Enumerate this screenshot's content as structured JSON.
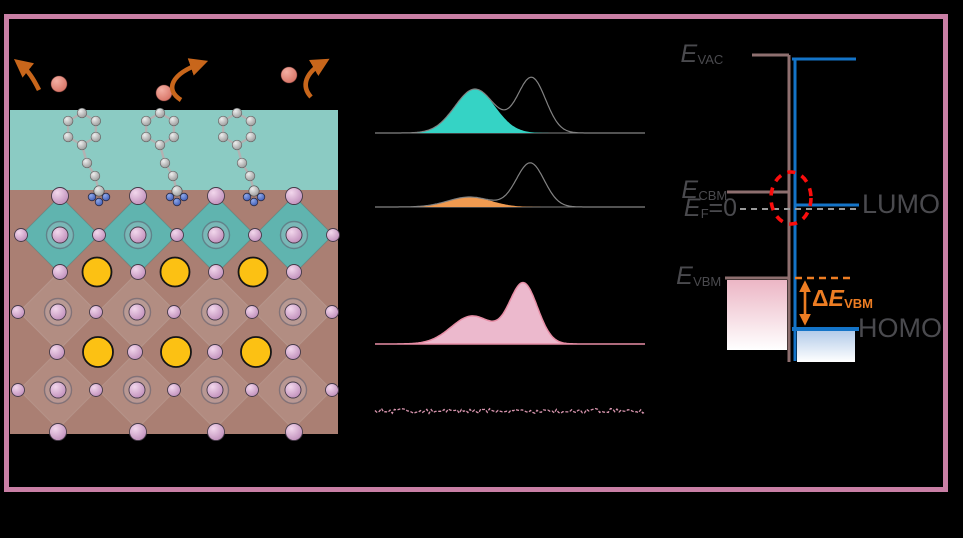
{
  "figure": {
    "type": "scientific-figure",
    "background": "#000000",
    "border_color": "#c97fa5"
  },
  "palette": {
    "teal_layer": "#8bcbc3",
    "perovskite_brown": "#aa7f73",
    "octahedra_teal": "#60b4af",
    "iodide_pink_sphere": "#cf9fc6",
    "cation_yellow": "#fcc113",
    "escaping_ion_salmon": "#e2897e",
    "arrow_orange": "#c8661b",
    "nitrogen_blue": "#4f6fce",
    "carbon_gray": "#b9b9b9",
    "spectrum_teal_fill": "#35d3c5",
    "spectrum_orange_fill": "#f09a50",
    "spectrum_pink_fill": "#ecb9cd",
    "spectrum_pink_line": "#e78ea6",
    "noise_trace_pink": "#d795ae",
    "fit_curve_gray": "#828282",
    "level_mauve": "#8e6f6f",
    "level_blue": "#1474c8",
    "label_gray": "#4a4a4e",
    "accent_orange": "#ed7d23",
    "highlight_red": "#fb0d0d",
    "fermi_dash_gray": "#9a9a9a",
    "vbm_box_top": "#ecb6c5",
    "homo_box_top": "#b3cbe9",
    "box_bottom": "#ffffff"
  },
  "left_panel": {
    "description": "perovskite slab with surface molecules and escaping ions",
    "icons": [
      {
        "name": "escape-arrow-icon",
        "count": 3,
        "color": "#c8661b"
      },
      {
        "name": "escaping-ion-sphere",
        "count": 3,
        "color": "#e2897e"
      },
      {
        "name": "surface-molecule",
        "count": 3
      }
    ]
  },
  "chart_data": [
    {
      "type": "area",
      "name": "spectrum-1",
      "x_range": [
        0,
        100
      ],
      "baseline": 0,
      "series": [
        {
          "name": "filled-component",
          "fill": "#35d3c5",
          "peaks": [
            {
              "center": 37,
              "sigma": 7.4,
              "amplitude": 44
            }
          ]
        },
        {
          "name": "total-fit",
          "stroke": "#828282",
          "peaks": [
            {
              "center": 37,
              "sigma": 7.4,
              "amplitude": 44
            },
            {
              "center": 58,
              "sigma": 5.2,
              "amplitude": 55
            }
          ]
        }
      ]
    },
    {
      "type": "area",
      "name": "spectrum-2",
      "x_range": [
        0,
        100
      ],
      "baseline": 0,
      "series": [
        {
          "name": "filled-component",
          "fill": "#f09a50",
          "peaks": [
            {
              "center": 35,
              "sigma": 8.0,
              "amplitude": 10
            }
          ]
        },
        {
          "name": "total-fit",
          "stroke": "#828282",
          "peaks": [
            {
              "center": 35,
              "sigma": 8.0,
              "amplitude": 10
            },
            {
              "center": 57.5,
              "sigma": 5.2,
              "amplitude": 44
            }
          ]
        }
      ]
    },
    {
      "type": "area",
      "name": "spectrum-3",
      "x_range": [
        0,
        100
      ],
      "baseline": 0,
      "series": [
        {
          "name": "filled-total",
          "fill": "#ecb9cd",
          "stroke": "#e78ea6",
          "peaks": [
            {
              "center": 36,
              "sigma": 7.8,
              "amplitude": 28
            },
            {
              "center": 55,
              "sigma": 5.2,
              "amplitude": 60
            }
          ]
        }
      ]
    },
    {
      "type": "line",
      "name": "spectrum-4-noise",
      "x_range": [
        0,
        100
      ],
      "noise_amplitude": 2.2,
      "stroke": "#d795ae"
    }
  ],
  "energy_diagram": {
    "labels": {
      "evac": {
        "main": "E",
        "sub": "VAC"
      },
      "ecbm": {
        "main": "E",
        "sub": "CBM"
      },
      "ef": {
        "main": "E",
        "sub": "F",
        "suffix": "=0"
      },
      "evbm": {
        "main": "E",
        "sub": "VBM"
      },
      "lumo": "LUMO",
      "homo": "HOMO",
      "delta_evbm": {
        "prefix": "Δ",
        "main": "E",
        "sub": "VBM"
      }
    }
  }
}
